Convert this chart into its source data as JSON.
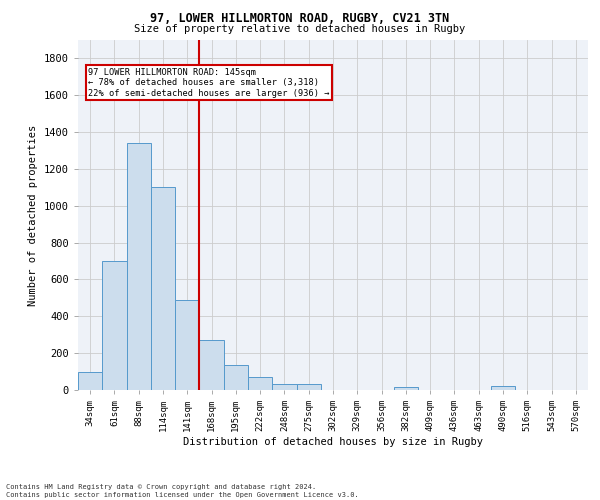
{
  "title1": "97, LOWER HILLMORTON ROAD, RUGBY, CV21 3TN",
  "title2": "Size of property relative to detached houses in Rugby",
  "xlabel": "Distribution of detached houses by size in Rugby",
  "ylabel": "Number of detached properties",
  "footnote": "Contains HM Land Registry data © Crown copyright and database right 2024.\nContains public sector information licensed under the Open Government Licence v3.0.",
  "bar_labels": [
    "34sqm",
    "61sqm",
    "88sqm",
    "114sqm",
    "141sqm",
    "168sqm",
    "195sqm",
    "222sqm",
    "248sqm",
    "275sqm",
    "302sqm",
    "329sqm",
    "356sqm",
    "382sqm",
    "409sqm",
    "436sqm",
    "463sqm",
    "490sqm",
    "516sqm",
    "543sqm",
    "570sqm"
  ],
  "bar_values": [
    100,
    700,
    1340,
    1100,
    490,
    270,
    135,
    70,
    35,
    35,
    0,
    0,
    0,
    15,
    0,
    0,
    0,
    20,
    0,
    0,
    0
  ],
  "bar_color": "#ccdded",
  "bar_edge_color": "#5599cc",
  "annotation_line1": "97 LOWER HILLMORTON ROAD: 145sqm",
  "annotation_line2": "← 78% of detached houses are smaller (3,318)",
  "annotation_line3": "22% of semi-detached houses are larger (936) →",
  "annotation_box_color": "#cc0000",
  "vline_color": "#cc0000",
  "vline_x": 4.5,
  "ylim": [
    0,
    1900
  ],
  "yticks": [
    0,
    200,
    400,
    600,
    800,
    1000,
    1200,
    1400,
    1600,
    1800
  ],
  "grid_color": "#cccccc",
  "bg_color": "#eef2f8"
}
